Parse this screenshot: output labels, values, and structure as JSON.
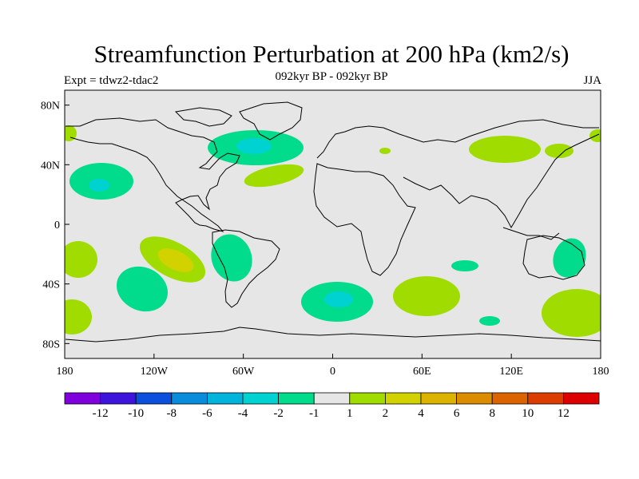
{
  "title": "Streamfunction Perturbation at 200 hPa (km2/s)",
  "subtitle": "092kyr BP - 092kyr BP",
  "left_label": "Expt = tdwz2-tdac2",
  "right_label": "JJA",
  "colors": {
    "background": "#e6e6e6",
    "coast": "#000000",
    "levels": [
      "#7f00dc",
      "#3c14dc",
      "#0a50dc",
      "#0a8cdc",
      "#00b4dc",
      "#00d2d2",
      "#00dc8c",
      "#e6e6e6",
      "#a0dc00",
      "#d2d200",
      "#dcb400",
      "#dc8c00",
      "#dc6400",
      "#dc3c00",
      "#dc0000"
    ]
  },
  "chart_data": {
    "type": "contour-map",
    "projection": "cylindrical equidistant",
    "x_ticks": [
      "180",
      "120W",
      "60W",
      "0",
      "60E",
      "120E",
      "180"
    ],
    "y_ticks": [
      "80N",
      "40N",
      "0",
      "40S",
      "80S"
    ],
    "colorbar_labels": [
      "-12",
      "-10",
      "-8",
      "-6",
      "-4",
      "-2",
      "-1",
      "1",
      "2",
      "4",
      "6",
      "8",
      "10",
      "12"
    ],
    "anomalies": [
      {
        "name": "north-atlantic-low",
        "lon": -48,
        "lat": 52,
        "level": -2,
        "core": -4
      },
      {
        "name": "north-pacific-low",
        "lon": -163,
        "lat": 31,
        "level": -2,
        "core": -4
      },
      {
        "name": "subtropical-atlantic-high",
        "lon": -35,
        "lat": 32,
        "level": 1
      },
      {
        "name": "mongolia-high",
        "lon": 82,
        "lat": 50,
        "level": 1
      },
      {
        "name": "japan-high",
        "lon": 150,
        "lat": 48,
        "level": 1
      },
      {
        "name": "south-pacific-high",
        "lon": -108,
        "lat": -23,
        "level": 1,
        "core": 2
      },
      {
        "name": "south-america-low",
        "lon": -65,
        "lat": -25,
        "level": -2
      },
      {
        "name": "southeast-pacific-low",
        "lon": -123,
        "lat": -48,
        "level": -2
      },
      {
        "name": "south-atlantic-low",
        "lon": 3,
        "lat": -50,
        "level": -2,
        "core": -4
      },
      {
        "name": "south-indian-high",
        "lon": 60,
        "lat": -50,
        "level": 1
      },
      {
        "name": "indian-ocean-low",
        "lon": 88,
        "lat": -28,
        "level": -2
      },
      {
        "name": "australia-low",
        "lon": 152,
        "lat": -22,
        "level": -2
      },
      {
        "name": "new-zealand-high",
        "lon": 162,
        "lat": -55,
        "level": 1
      },
      {
        "name": "southwest-atlantic-high",
        "lon": -175,
        "lat": -25,
        "level": 1
      }
    ]
  }
}
